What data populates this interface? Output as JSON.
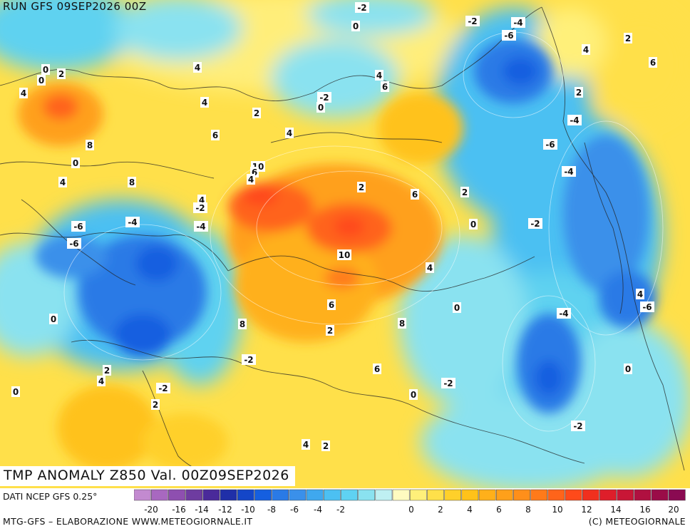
{
  "header": {
    "run_label": "RUN GFS 09SEP2026 00Z"
  },
  "map": {
    "title": "TMP ANOMALY Z850 Val. 00Z09SEP2026",
    "source": "DATI NCEP GFS 0.25°",
    "credit_left": "MTG-GFS – ELABORAZIONE WWW.METEOGIORNALE.IT",
    "credit_right": "(C) METEOGIORNALE",
    "contour_labels": [
      "-2",
      "0",
      "-2",
      "-4",
      "-6",
      "2",
      "4",
      "0",
      "2",
      "4",
      "6",
      "0",
      "-2",
      "0",
      "4",
      "6",
      "4",
      "2",
      "4",
      "2",
      "4",
      "8",
      "6",
      "0",
      "4",
      "8",
      "10",
      "6",
      "4",
      "2",
      "4",
      "6",
      "2",
      "-2",
      "-6",
      "-4",
      "-4",
      "0",
      "-2",
      "-6",
      "-4",
      "-6",
      "10",
      "4",
      "-4",
      "0",
      "0",
      "8",
      "6",
      "8",
      "4",
      "-6",
      "-4",
      "2",
      "-2",
      "6",
      "2",
      "0",
      "-2",
      "0",
      "4",
      "-2",
      "2",
      "4",
      "2",
      "-2",
      "0"
    ],
    "colors": {
      "neg20": "#c07ad0",
      "neg8": "#2a7ae6",
      "neg4": "#3fb0ef",
      "neg2": "#5fd2f0",
      "zero": "#bff0f2",
      "pos2": "#ffe04a",
      "pos4": "#ffc21a",
      "pos6": "#ffa01a",
      "pos8": "#ff7f1a",
      "pos10": "#ff4a1a",
      "pos20": "#b0104a"
    }
  },
  "scale": {
    "colors": [
      "#c38ad0",
      "#a868c0",
      "#8e4fb0",
      "#6e3ca0",
      "#4a2a9a",
      "#1f2fa8",
      "#1446c8",
      "#155fe0",
      "#2a7ae6",
      "#3a90ea",
      "#3fa8ee",
      "#4cc0f2",
      "#5fd2f2",
      "#8ae2f0",
      "#bff0f2",
      "#fffbc0",
      "#fff07a",
      "#ffe04a",
      "#ffd02a",
      "#ffc21a",
      "#ffb01a",
      "#ffa01a",
      "#ff8f1a",
      "#ff7a1a",
      "#ff641a",
      "#ff4a1a",
      "#f0301e",
      "#de1e2a",
      "#c81636",
      "#b01040",
      "#9a0c48",
      "#8a0a52"
    ],
    "ticks": [
      "-20",
      "-16",
      "-14",
      "-12",
      "-10",
      "-8",
      "-6",
      "-4",
      "-2",
      "0",
      "2",
      "4",
      "6",
      "8",
      "10",
      "12",
      "14",
      "16",
      "20"
    ]
  }
}
